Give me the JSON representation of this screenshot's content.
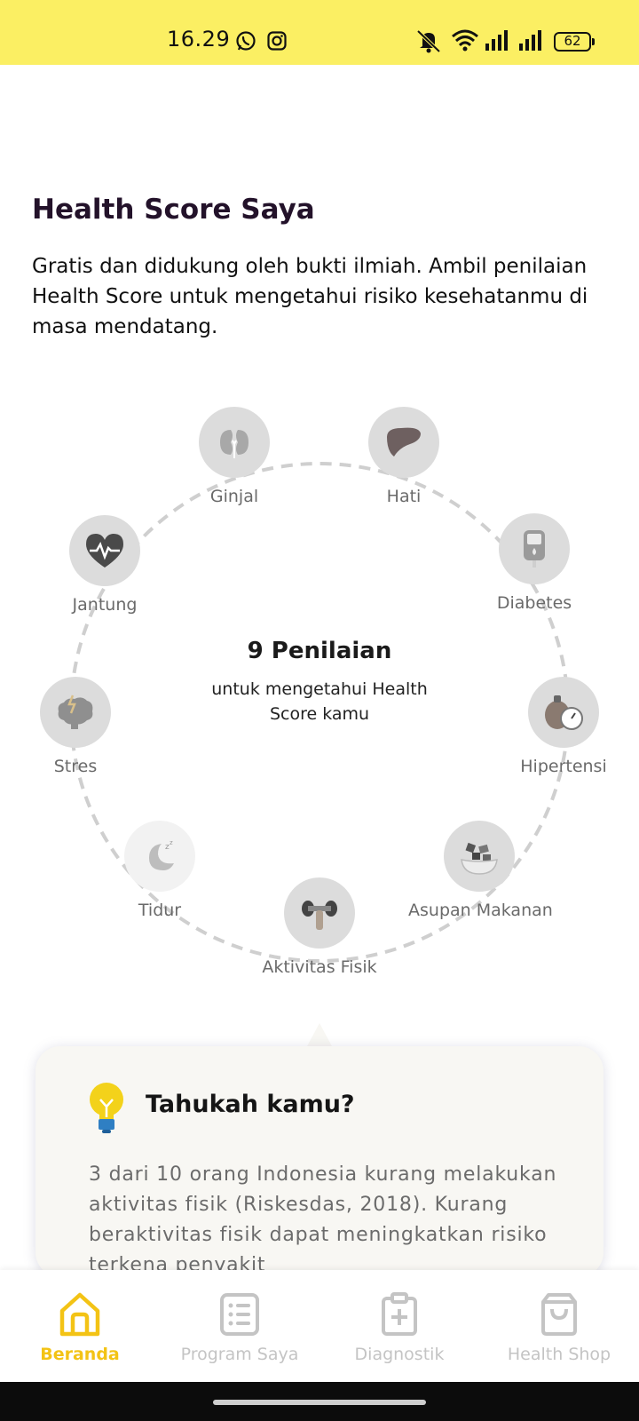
{
  "status_bar": {
    "time": "16.29",
    "battery": "62",
    "icons": [
      "whatsapp-icon",
      "instagram-icon",
      "mute-icon",
      "wifi-icon",
      "signal-icon",
      "signal-icon",
      "battery-icon"
    ]
  },
  "header": {
    "title": "Health Score Saya",
    "intro": "Gratis dan didukung oleh bukti ilmiah. Ambil penilaian Health Score untuk mengetahui risiko kesehatanmu di masa mendatang."
  },
  "assessments": {
    "center_title": "9 Penilaian",
    "center_subtitle": "untuk mengetahui Health Score kamu",
    "items": [
      {
        "label": "Ginjal",
        "icon": "kidney-icon"
      },
      {
        "label": "Hati",
        "icon": "liver-icon"
      },
      {
        "label": "Diabetes",
        "icon": "glucose-meter-icon"
      },
      {
        "label": "Hipertensi",
        "icon": "blood-pressure-icon"
      },
      {
        "label": "Asupan Makanan",
        "icon": "food-bowl-icon"
      },
      {
        "label": "Aktivitas Fisik",
        "icon": "dumbbell-icon"
      },
      {
        "label": "Tidur",
        "icon": "moon-sleep-icon"
      },
      {
        "label": "Stres",
        "icon": "brain-stress-icon"
      },
      {
        "label": "Jantung",
        "icon": "heart-icon"
      }
    ]
  },
  "info_card": {
    "title": "Tahukah kamu?",
    "body": "3 dari 10 orang Indonesia kurang melakukan aktivitas fisik (Riskesdas, 2018). Kurang beraktivitas fisik dapat meningkatkan risiko terkena penyakit",
    "icon": "lightbulb-icon"
  },
  "bottom_nav": {
    "active_color": "#f3c315",
    "inactive_color": "#c4c4c4",
    "items": [
      {
        "label": "Beranda",
        "icon": "home-icon",
        "active": true
      },
      {
        "label": "Program Saya",
        "icon": "list-icon",
        "active": false
      },
      {
        "label": "Diagnostik",
        "icon": "clipboard-plus-icon",
        "active": false
      },
      {
        "label": "Health Shop",
        "icon": "shopping-bag-icon",
        "active": false
      }
    ]
  },
  "colors": {
    "status_bar": "#fbef63",
    "brand_yellow": "#f3c315",
    "icon_bg": "#dcdcdc"
  }
}
